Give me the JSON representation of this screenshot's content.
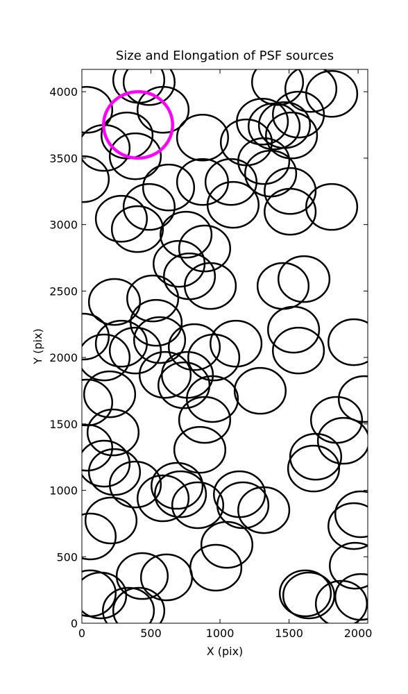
{
  "chart_data": {
    "type": "scatter",
    "title": "Size and Elongation of PSF sources",
    "x_label": "X (pix)",
    "y_label": "Y (pix)",
    "xlim": [
      0,
      2070
    ],
    "ylim": [
      0,
      4168
    ],
    "xticks": [
      0,
      500,
      1000,
      1500,
      2000
    ],
    "yticks": [
      0,
      500,
      1000,
      1500,
      2000,
      2500,
      3000,
      3500,
      4000
    ],
    "series": [
      {
        "color": "#000000",
        "width": 370,
        "height": 345,
        "x": [
          35,
          412,
          487,
          588,
          327,
          387,
          161,
          10,
          286,
          402,
          487,
          628,
          874,
          874,
          754,
          889,
          704,
          779,
          930,
          1095,
          1080,
          1191,
          1307,
          1392,
          1317,
          1367,
          1508,
          1508,
          1417,
          1658,
          1809,
          1568,
          1518,
          1467,
          1809,
          1457,
          1608,
          236,
          513,
          538,
          563,
          286,
          387,
          161,
          10,
          603,
          739,
          764,
          814,
          955,
          1116,
          945,
          889,
          854,
          1291,
          1533,
          1568,
          1970,
          2045,
          1844,
          1894,
          1693,
          1678,
          201,
          35,
          226,
          35,
          161,
          236,
          387,
          588,
          689,
          714,
          839,
          1141,
          1166,
          1317,
          211,
          60,
          1970,
          2020,
          1050,
          970,
          1980,
          437,
          613,
          60,
          136,
          337,
          412,
          1618,
          1643,
          1879,
          2020
        ],
        "y": [
          3864,
          4089,
          4073,
          3864,
          3671,
          3514,
          3577,
          3342,
          3044,
          2966,
          3133,
          3279,
          3321,
          3655,
          2924,
          2820,
          2705,
          2611,
          2538,
          3149,
          3321,
          3619,
          3775,
          3739,
          3478,
          3384,
          3253,
          3097,
          4073,
          4021,
          3984,
          3828,
          3671,
          3749,
          3133,
          2538,
          2590,
          2418,
          2444,
          2261,
          2131,
          2104,
          2052,
          2000,
          2157,
          1869,
          1791,
          1869,
          2078,
          2000,
          2104,
          1687,
          1530,
          1305,
          1749,
          2209,
          2052,
          2115,
          1687,
          1530,
          1373,
          1253,
          1164,
          1723,
          1661,
          1436,
          1321,
          1201,
          1138,
          1044,
          940,
          1034,
          971,
          888,
          971,
          888,
          851,
          773,
          653,
          731,
          820,
          590,
          418,
          433,
          355,
          345,
          225,
          209,
          94,
          94,
          225,
          209,
          146,
          198
        ]
      },
      {
        "color": "#ff00ff",
        "width": 500,
        "height": 500,
        "x": [
          407
        ],
        "y": [
          3750
        ]
      }
    ]
  }
}
